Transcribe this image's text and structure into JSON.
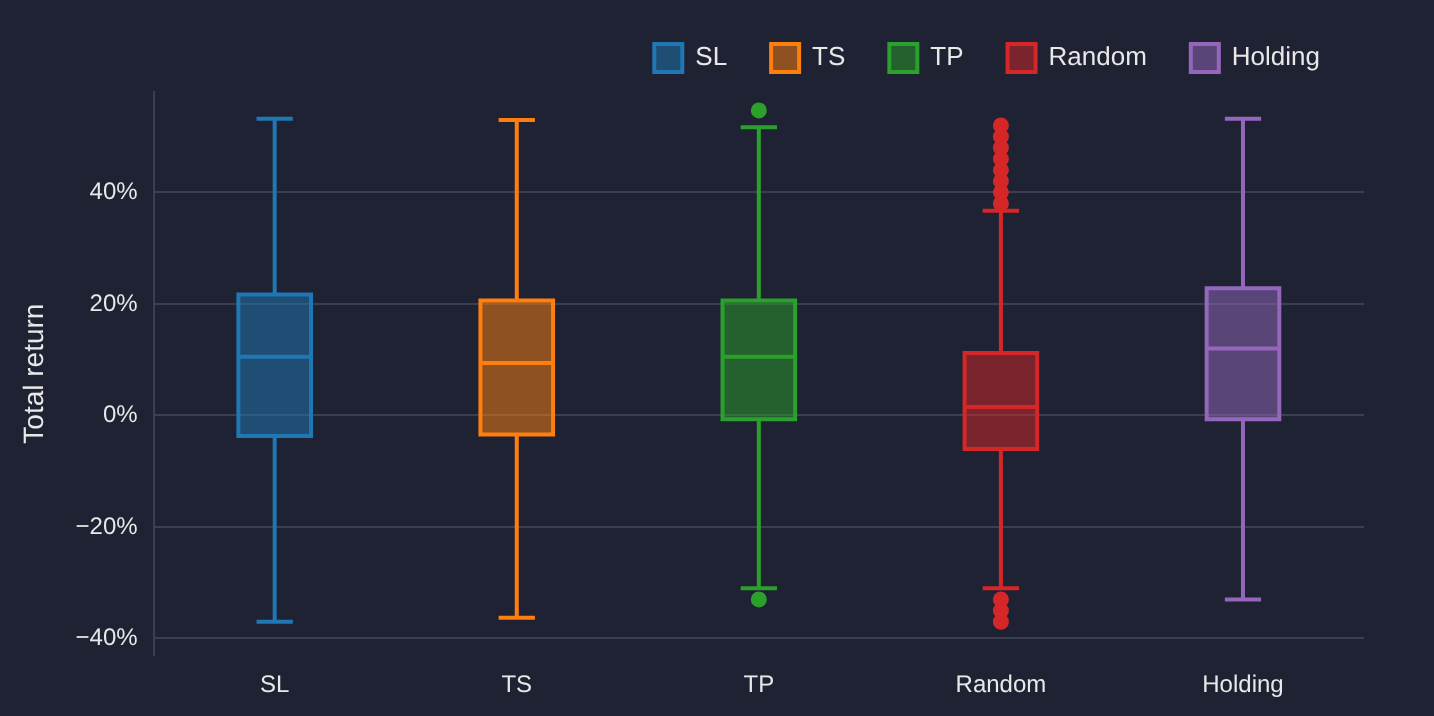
{
  "chart_data": {
    "type": "box",
    "ylabel": "Total return",
    "categories": [
      "SL",
      "TS",
      "TP",
      "Random",
      "Holding"
    ],
    "series": [
      {
        "name": "SL",
        "color": "#1f77b4",
        "x": [
          "SL"
        ],
        "boxes": [
          {
            "low": -37,
            "q1": -3.7,
            "median": 10.5,
            "q3": 21.7,
            "high": 53.2
          }
        ]
      },
      {
        "name": "TS",
        "color": "#ff7f0e",
        "x": [
          "TS"
        ],
        "boxes": [
          {
            "low": -36.3,
            "q1": -3.4,
            "median": 9.4,
            "q3": 20.6,
            "high": 53
          }
        ]
      },
      {
        "name": "TP",
        "color": "#2ca02c",
        "x": [
          "TP"
        ],
        "boxes": [
          {
            "low": -31,
            "q1": -0.7,
            "median": 10.5,
            "q3": 20.6,
            "high": 51.7,
            "outliers": [
              54.7,
              -33
            ]
          }
        ]
      },
      {
        "name": "Random",
        "color": "#d62728",
        "x": [
          "Random"
        ],
        "boxes": [
          {
            "low": -31,
            "q1": -6,
            "median": 1.5,
            "q3": 11.2,
            "high": 36.7,
            "outliers": [
              38,
              40,
              42,
              44,
              46,
              48,
              50,
              52,
              -33,
              -35,
              -37
            ]
          }
        ]
      },
      {
        "name": "Holding",
        "color": "#9467bd",
        "x": [
          "Holding"
        ],
        "boxes": [
          {
            "low": -33,
            "q1": -0.7,
            "median": 12,
            "q3": 22.8,
            "high": 53.2
          }
        ]
      }
    ],
    "ylim": [
      -43,
      58
    ],
    "yticks": [
      {
        "value": -40,
        "label": "−40%"
      },
      {
        "value": -20,
        "label": "−20%"
      },
      {
        "value": 0,
        "label": "0%"
      },
      {
        "value": 20,
        "label": "20%"
      },
      {
        "value": 40,
        "label": "40%"
      }
    ],
    "grid": "y",
    "legend": "top right"
  }
}
